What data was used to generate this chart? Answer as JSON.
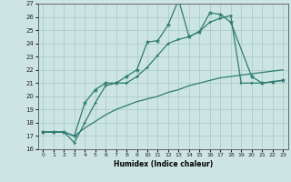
{
  "xlabel": "Humidex (Indice chaleur)",
  "xlim": [
    -0.5,
    23.5
  ],
  "ylim": [
    16,
    27
  ],
  "yticks": [
    16,
    17,
    18,
    19,
    20,
    21,
    22,
    23,
    24,
    25,
    26,
    27
  ],
  "xticks": [
    0,
    1,
    2,
    3,
    4,
    5,
    6,
    7,
    8,
    9,
    10,
    11,
    12,
    13,
    14,
    15,
    16,
    17,
    18,
    19,
    20,
    21,
    22,
    23
  ],
  "bg_color": "#cce5e3",
  "grid_color": "#aaccca",
  "line_color": "#2e7b70",
  "line1_x": [
    0,
    1,
    2,
    3,
    4,
    5,
    6,
    7,
    8,
    9,
    10,
    11,
    12,
    13,
    14,
    15,
    16,
    17,
    18,
    20,
    21,
    22,
    23
  ],
  "line1_y": [
    17.3,
    17.3,
    17.3,
    17.0,
    19.5,
    20.5,
    21.0,
    21.0,
    21.5,
    22.0,
    24.1,
    24.2,
    25.4,
    27.3,
    24.5,
    24.9,
    26.3,
    26.2,
    25.6,
    21.5,
    21.0,
    21.1,
    21.2
  ],
  "line2_x": [
    0,
    1,
    2,
    3,
    4,
    5,
    6,
    7,
    8,
    9,
    10,
    11,
    12,
    13,
    14,
    15,
    16,
    17,
    18,
    19,
    20,
    21,
    22,
    23
  ],
  "line2_y": [
    17.3,
    17.3,
    17.3,
    16.5,
    18.0,
    19.5,
    20.8,
    21.0,
    21.0,
    21.5,
    22.2,
    23.1,
    24.0,
    24.3,
    24.5,
    24.9,
    25.6,
    25.9,
    26.1,
    21.0,
    21.0,
    21.0,
    21.1,
    21.2
  ],
  "line3_x": [
    0,
    1,
    2,
    3,
    4,
    5,
    6,
    7,
    8,
    9,
    10,
    11,
    12,
    13,
    14,
    15,
    16,
    17,
    18,
    19,
    20,
    21,
    22,
    23
  ],
  "line3_y": [
    17.3,
    17.3,
    17.3,
    17.0,
    17.6,
    18.1,
    18.6,
    19.0,
    19.3,
    19.6,
    19.8,
    20.0,
    20.3,
    20.5,
    20.8,
    21.0,
    21.2,
    21.4,
    21.5,
    21.6,
    21.7,
    21.8,
    21.9,
    22.0
  ]
}
